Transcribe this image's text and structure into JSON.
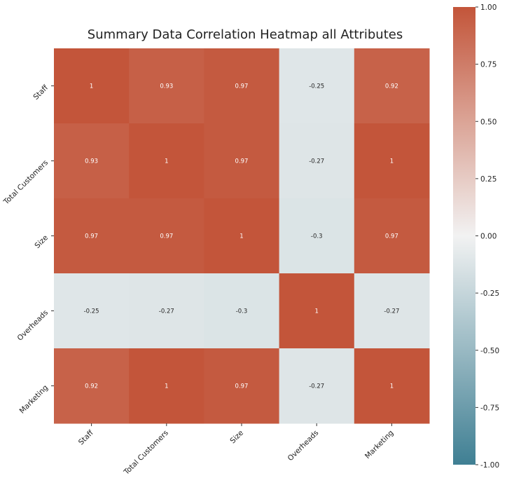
{
  "chart_data": {
    "type": "heatmap",
    "title": "Summary Data Correlation Heatmap all Attributes",
    "rows": [
      "Staff",
      "Total Customers",
      "Size",
      "Overheads",
      "Marketing"
    ],
    "columns": [
      "Staff",
      "Total Customers",
      "Size",
      "Overheads",
      "Marketing"
    ],
    "values": [
      [
        1,
        0.93,
        0.97,
        -0.25,
        0.92
      ],
      [
        0.93,
        1,
        0.97,
        -0.27,
        1
      ],
      [
        0.97,
        0.97,
        1,
        -0.3,
        0.97
      ],
      [
        -0.25,
        -0.27,
        -0.3,
        1,
        -0.27
      ],
      [
        0.92,
        1,
        0.97,
        -0.27,
        1
      ]
    ],
    "cell_labels": [
      [
        "1",
        "0.93",
        "0.97",
        "-0.25",
        "0.92"
      ],
      [
        "0.93",
        "1",
        "0.97",
        "-0.27",
        "1"
      ],
      [
        "0.97",
        "0.97",
        "1",
        "-0.3",
        "0.97"
      ],
      [
        "-0.25",
        "-0.27",
        "-0.3",
        "1",
        "-0.27"
      ],
      [
        "0.92",
        "1",
        "0.97",
        "-0.27",
        "1"
      ]
    ],
    "colorbar": {
      "range": [
        -1,
        1
      ],
      "ticks": [
        "1.00",
        "0.75",
        "0.50",
        "0.25",
        "0.00",
        "-0.25",
        "-0.50",
        "-0.75",
        "-1.00"
      ],
      "tick_values": [
        1,
        0.75,
        0.5,
        0.25,
        0,
        -0.25,
        -0.5,
        -0.75,
        -1
      ],
      "colors": {
        "low": "#3f7f93",
        "mid": "#f2f2f2",
        "high": "#c3553a"
      },
      "neutral_clip": 0.5
    }
  }
}
